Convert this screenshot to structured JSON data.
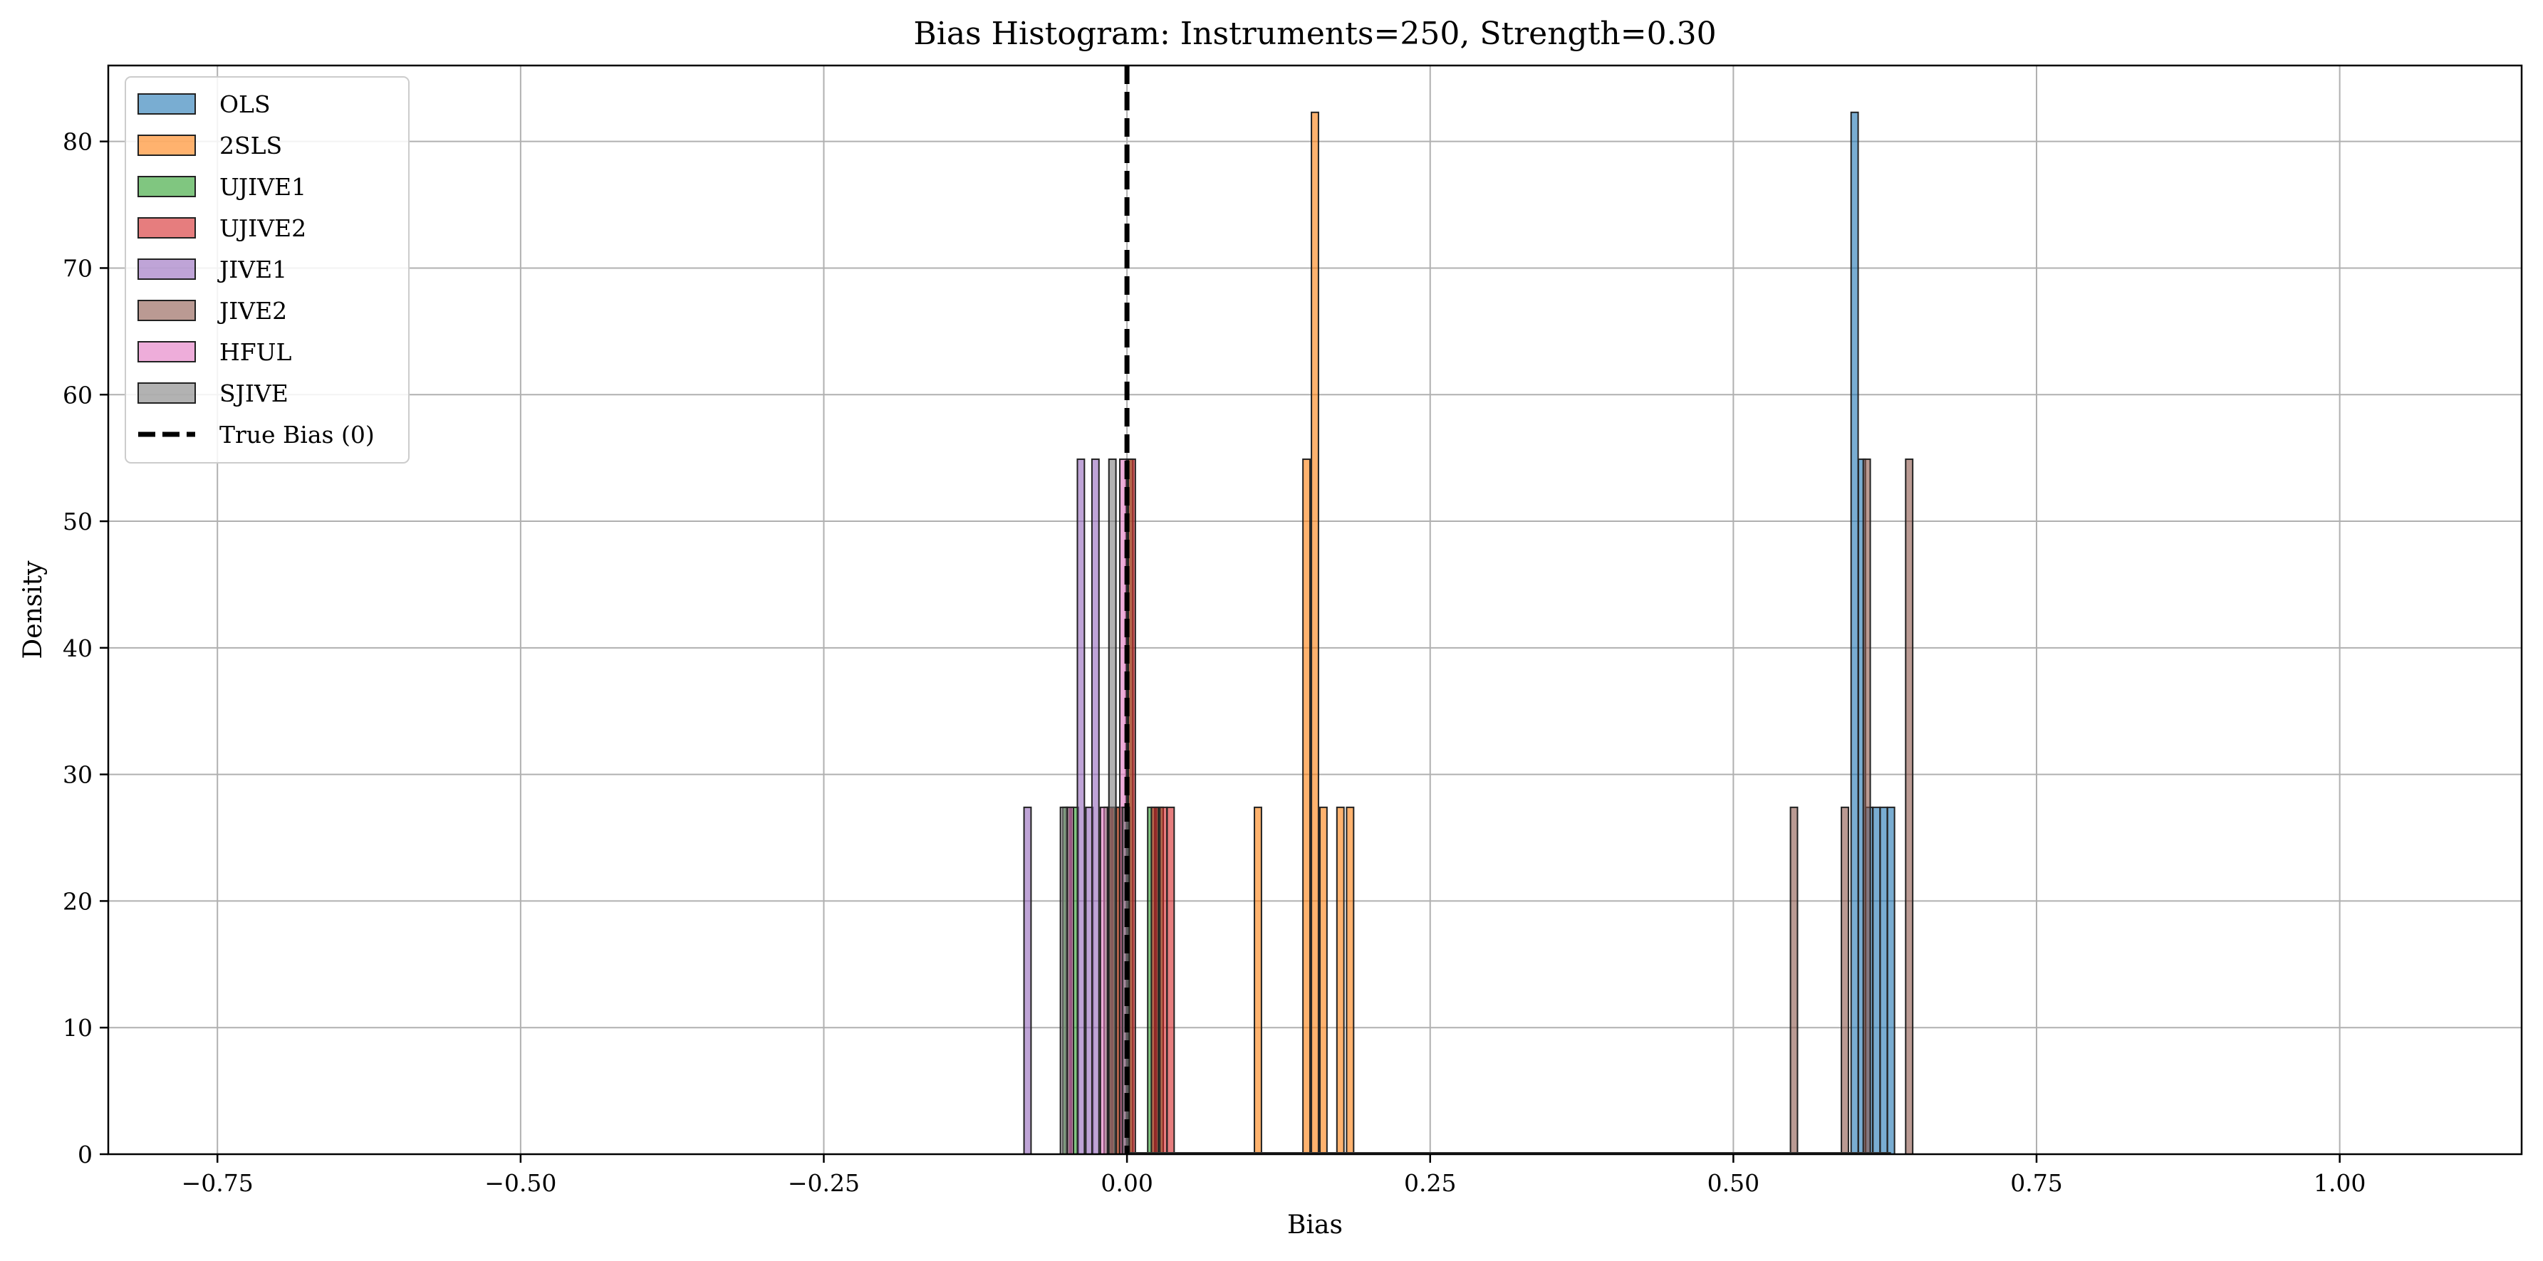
{
  "chart_data": {
    "type": "bar",
    "title": "Bias Histogram: Instruments=250, Strength=0.30",
    "xlabel": "Bias",
    "ylabel": "Density",
    "xlim": [
      -0.84,
      1.15
    ],
    "ylim": [
      0,
      86
    ],
    "xticks": [
      -0.75,
      -0.5,
      -0.25,
      0.0,
      0.25,
      0.5,
      0.75,
      1.0
    ],
    "xtick_labels": [
      "−0.75",
      "−0.50",
      "−0.25",
      "0.00",
      "0.25",
      "0.50",
      "0.75",
      "1.00"
    ],
    "yticks": [
      0,
      10,
      20,
      30,
      40,
      50,
      60,
      70,
      80
    ],
    "ytick_labels": [
      "0",
      "10",
      "20",
      "30",
      "40",
      "50",
      "60",
      "70",
      "80"
    ],
    "grid": true,
    "legend_position": "upper-left",
    "reference_line": {
      "x": 0.0,
      "style": "dashed",
      "color": "#000000",
      "label": "True Bias (0)"
    },
    "series": [
      {
        "name": "OLS",
        "color": "#1f77b4",
        "x": [
          0.6,
          0.606,
          0.612,
          0.618,
          0.624,
          0.63
        ],
        "values": [
          82.3,
          54.9,
          27.4,
          27.4,
          27.4,
          27.4
        ]
      },
      {
        "name": "2SLS",
        "color": "#ff7f0e",
        "x": [
          0.108,
          0.148,
          0.155,
          0.162,
          0.176,
          0.184
        ],
        "values": [
          27.4,
          54.9,
          82.3,
          27.4,
          27.4,
          27.4
        ]
      },
      {
        "name": "UJIVE1",
        "color": "#2ca02c",
        "x": [
          -0.05,
          -0.043,
          -0.016,
          -0.009,
          0.002,
          0.02,
          0.027
        ],
        "values": [
          27.4,
          27.4,
          27.4,
          27.4,
          54.9,
          27.4,
          27.4
        ]
      },
      {
        "name": "UJIVE2",
        "color": "#d62728",
        "x": [
          -0.013,
          -0.006,
          0.004,
          0.023,
          0.03,
          0.036
        ],
        "values": [
          27.4,
          27.4,
          54.9,
          27.4,
          27.4,
          27.4
        ]
      },
      {
        "name": "JIVE1",
        "color": "#9467bd",
        "x": [
          -0.082,
          -0.038,
          -0.031,
          -0.026
        ],
        "values": [
          27.4,
          54.9,
          27.4,
          54.9
        ]
      },
      {
        "name": "JIVE2",
        "color": "#8c564b",
        "x": [
          0.55,
          0.592,
          0.61,
          0.645
        ],
        "values": [
          27.4,
          27.4,
          54.9,
          54.9
        ]
      },
      {
        "name": "HFUL",
        "color": "#e377c2",
        "x": [
          -0.047,
          -0.019,
          -0.003
        ],
        "values": [
          27.4,
          27.4,
          54.9
        ]
      },
      {
        "name": "SJIVE",
        "color": "#7f7f7f",
        "x": [
          -0.052,
          -0.012,
          -0.001
        ],
        "values": [
          27.4,
          54.9,
          27.4
        ]
      }
    ]
  }
}
